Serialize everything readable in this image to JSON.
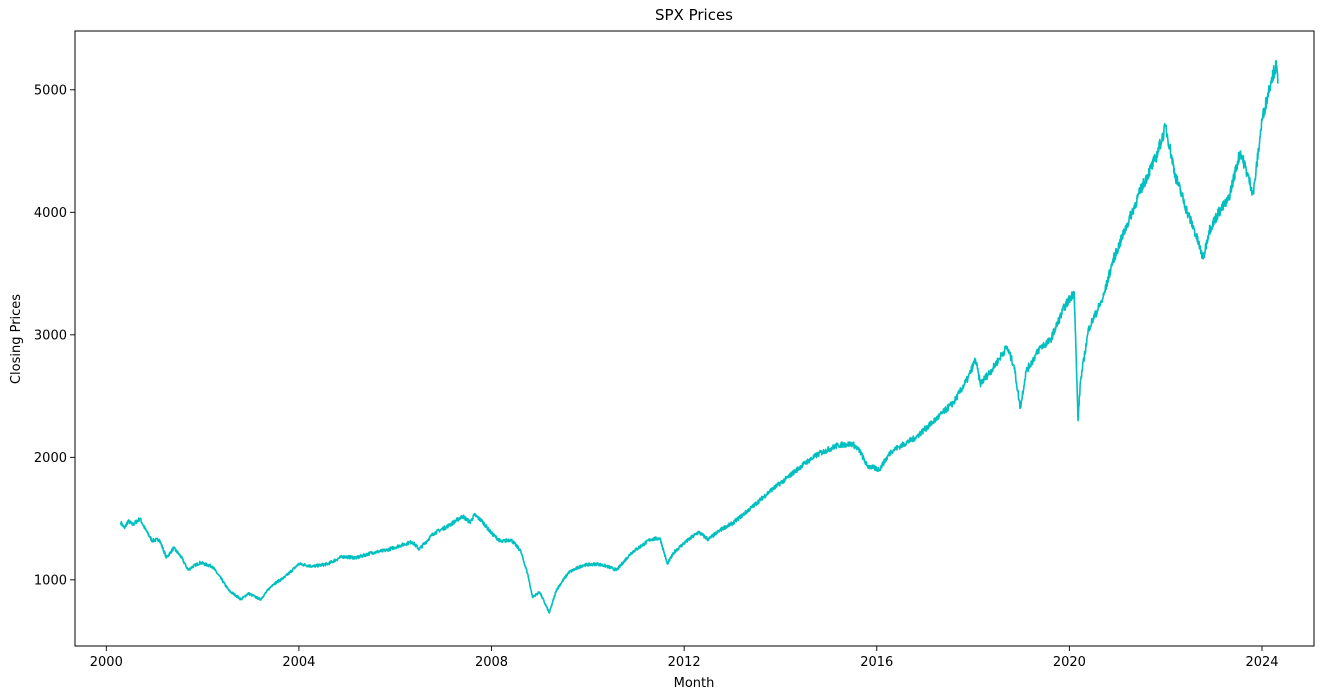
{
  "chart_data": {
    "type": "line",
    "title": "SPX Prices",
    "xlabel": "Month",
    "ylabel": "Closing Prices",
    "xlim": [
      1999.35,
      2025.08
    ],
    "ylim": [
      460,
      5480
    ],
    "x_ticks": [
      2000,
      2004,
      2008,
      2012,
      2016,
      2020,
      2024
    ],
    "x_tick_labels": [
      "2000",
      "2004",
      "2008",
      "2012",
      "2016",
      "2020",
      "2024"
    ],
    "y_ticks": [
      1000,
      2000,
      3000,
      4000,
      5000
    ],
    "y_tick_labels": [
      "1000",
      "2000",
      "3000",
      "4000",
      "5000"
    ],
    "grid": false,
    "line_color": "#00bfbf",
    "series": [
      {
        "x": [
          2000.3,
          2000.38,
          2000.45,
          2000.55,
          2000.7,
          2000.8,
          2000.95,
          2001.1,
          2001.25,
          2001.4,
          2001.55,
          2001.7,
          2001.8,
          2001.95,
          2002.2,
          2002.4,
          2002.55,
          2002.7,
          2002.8,
          2002.95,
          2003.1,
          2003.2,
          2003.45,
          2003.7,
          2004.0,
          2004.3,
          2004.6,
          2004.9,
          2005.2,
          2005.5,
          2005.8,
          2006.1,
          2006.35,
          2006.5,
          2006.8,
          2007.1,
          2007.4,
          2007.55,
          2007.65,
          2007.8,
          2008.0,
          2008.2,
          2008.4,
          2008.6,
          2008.75,
          2008.85,
          2009.0,
          2009.2,
          2009.35,
          2009.6,
          2009.9,
          2010.2,
          2010.4,
          2010.6,
          2010.9,
          2011.3,
          2011.5,
          2011.65,
          2011.8,
          2012.0,
          2012.3,
          2012.5,
          2012.8,
          2013.0,
          2013.4,
          2013.8,
          2014.1,
          2014.5,
          2014.8,
          2015.2,
          2015.5,
          2015.65,
          2015.8,
          2016.05,
          2016.3,
          2016.8,
          2017.2,
          2017.6,
          2017.9,
          2018.05,
          2018.15,
          2018.4,
          2018.7,
          2018.85,
          2018.98,
          2019.1,
          2019.4,
          2019.6,
          2019.9,
          2020.1,
          2020.18,
          2020.23,
          2020.4,
          2020.7,
          2020.9,
          2021.2,
          2021.5,
          2021.8,
          2022.0,
          2022.2,
          2022.45,
          2022.6,
          2022.78,
          2022.9,
          2023.1,
          2023.3,
          2023.55,
          2023.82,
          2024.0,
          2024.2,
          2024.3,
          2024.33
        ],
        "y": [
          1470,
          1420,
          1480,
          1450,
          1500,
          1420,
          1320,
          1330,
          1180,
          1260,
          1190,
          1080,
          1110,
          1140,
          1110,
          1000,
          910,
          870,
          840,
          890,
          860,
          840,
          960,
          1020,
          1130,
          1110,
          1130,
          1190,
          1180,
          1220,
          1240,
          1280,
          1310,
          1250,
          1380,
          1440,
          1520,
          1470,
          1530,
          1480,
          1380,
          1310,
          1330,
          1240,
          1050,
          860,
          900,
          730,
          920,
          1060,
          1120,
          1130,
          1110,
          1080,
          1220,
          1330,
          1340,
          1130,
          1230,
          1300,
          1390,
          1330,
          1420,
          1460,
          1590,
          1730,
          1820,
          1950,
          2030,
          2100,
          2110,
          2050,
          1930,
          1900,
          2050,
          2160,
          2300,
          2450,
          2650,
          2800,
          2600,
          2720,
          2900,
          2750,
          2400,
          2700,
          2900,
          2950,
          3230,
          3350,
          2300,
          2620,
          3050,
          3300,
          3600,
          3900,
          4200,
          4450,
          4700,
          4300,
          4000,
          3850,
          3620,
          3850,
          4000,
          4100,
          4500,
          4150,
          4750,
          5100,
          5200,
          5050
        ]
      }
    ]
  }
}
